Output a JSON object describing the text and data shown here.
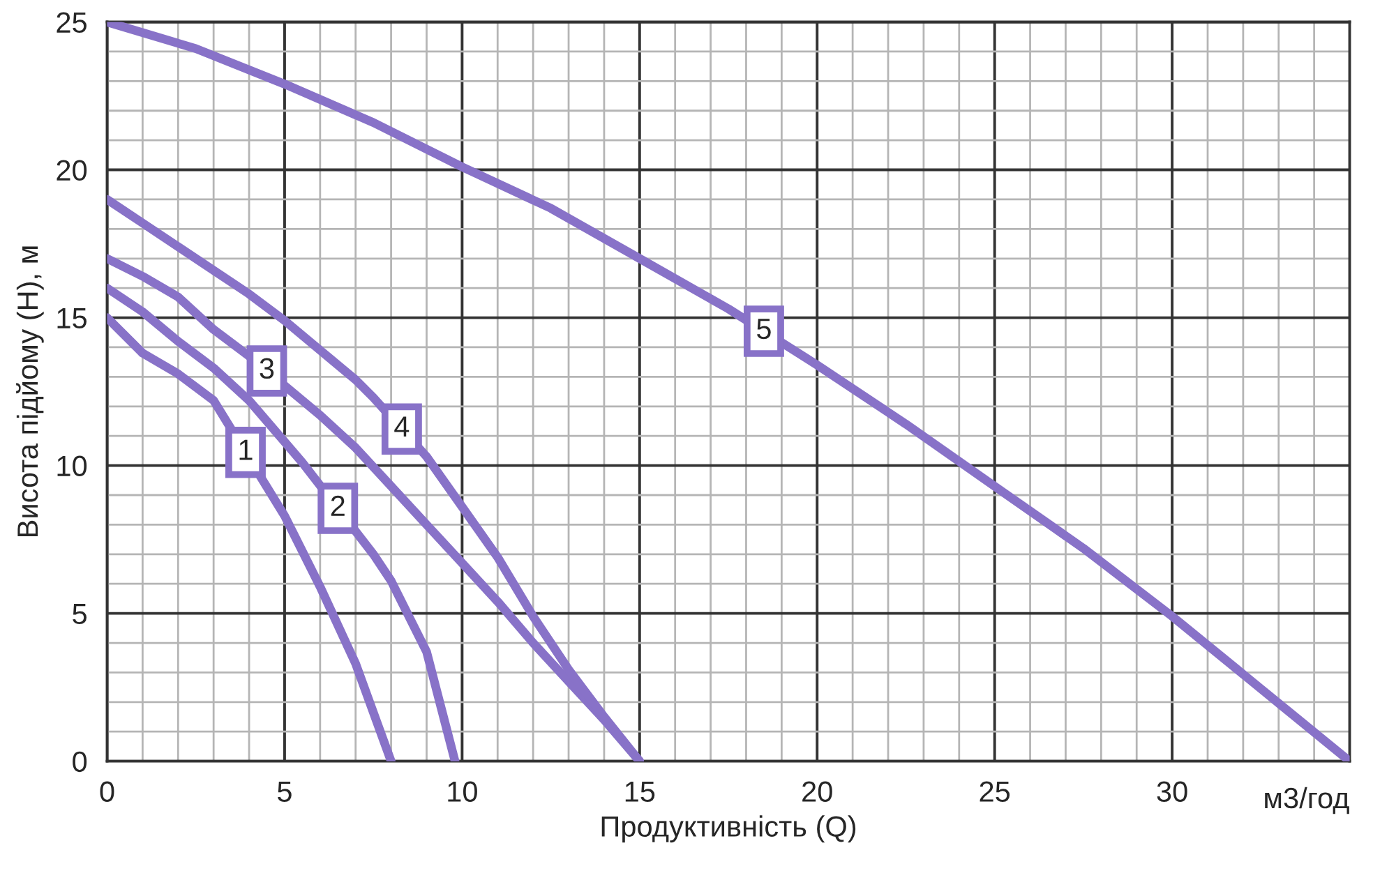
{
  "chart_data": {
    "type": "line",
    "xlabel": "Продуктивність (Q)",
    "ylabel": "Висота підйому (Н), м",
    "xlim": [
      0,
      35
    ],
    "ylim": [
      0,
      25
    ],
    "xticks": [
      0,
      5,
      10,
      15,
      20,
      25,
      30
    ],
    "yticks": [
      0,
      5,
      10,
      15,
      20,
      25
    ],
    "grid": true,
    "marker": "none",
    "line_style": "solid",
    "annotations": [
      "м3/год"
    ],
    "series": [
      {
        "name": "1",
        "color": "#8872c8",
        "x": [
          0,
          1,
          2,
          3,
          5,
          6,
          7,
          8
        ],
        "values": [
          15,
          13.8,
          13.1,
          12.2,
          8.3,
          5.9,
          3.3,
          0
        ]
      },
      {
        "name": "2",
        "color": "#8872c8",
        "x": [
          0,
          1,
          2,
          3,
          4,
          5,
          5.5,
          7.5,
          8,
          9,
          9.8
        ],
        "values": [
          16,
          15.2,
          14.2,
          13.3,
          12.2,
          10.8,
          10.1,
          7.0,
          6.1,
          3.7,
          0
        ]
      },
      {
        "name": "3",
        "color": "#8872c8",
        "x": [
          0,
          1,
          2,
          3,
          4,
          5,
          6,
          7,
          8,
          9,
          10,
          11,
          12,
          13,
          14,
          15
        ],
        "values": [
          17,
          16.4,
          15.7,
          14.6,
          13.7,
          12.7,
          11.7,
          10.6,
          9.3,
          8.0,
          6.7,
          5.4,
          4.0,
          2.7,
          1.4,
          0
        ]
      },
      {
        "name": "4",
        "color": "#8872c8",
        "x": [
          0,
          1,
          2,
          3,
          4,
          5,
          6,
          7,
          7.5,
          9,
          10,
          11,
          12,
          13,
          14,
          15
        ],
        "values": [
          19,
          18.2,
          17.4,
          16.6,
          15.8,
          14.9,
          13.9,
          12.9,
          12.3,
          10.3,
          8.6,
          6.9,
          4.9,
          3.1,
          1.5,
          0
        ]
      },
      {
        "name": "5",
        "color": "#8872c8",
        "x": [
          0,
          2.5,
          5,
          7.5,
          10,
          12.5,
          15,
          17.5,
          20,
          22.5,
          25,
          27.5,
          30,
          32.5,
          35
        ],
        "values": [
          25,
          24.1,
          22.9,
          21.6,
          20.1,
          18.7,
          17.0,
          15.3,
          13.4,
          11.4,
          9.3,
          7.2,
          4.9,
          2.45,
          0
        ]
      }
    ]
  }
}
